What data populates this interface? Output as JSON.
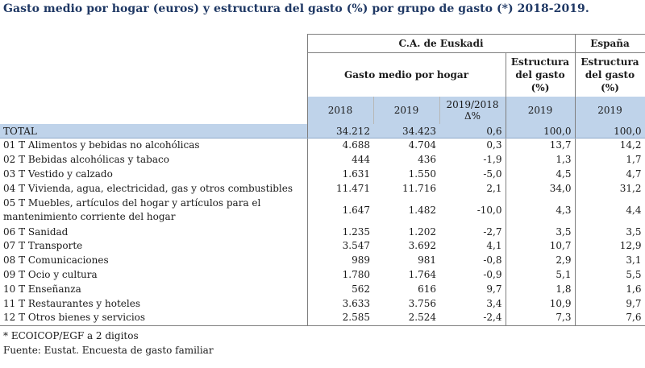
{
  "title": "Gasto medio por hogar (euros) y estructura del gasto (%) por grupo de gasto (*)  2018-2019.",
  "header": {
    "group_euskadi": "C.A. de Euskadi",
    "group_espana": "España",
    "gasto_medio": "Gasto medio por hogar",
    "estructura_euskadi": "Estructura del gasto (%)",
    "estructura_espana": "Estructura del gasto (%)",
    "years": [
      "2018",
      "2019",
      "2019/2018 Δ%",
      "2019",
      "2019"
    ]
  },
  "total": {
    "label": "TOTAL",
    "values": [
      "34.212",
      "34.423",
      "0,6",
      "100,0",
      "100,0"
    ]
  },
  "rows": [
    {
      "label": "01  T Alimentos y bebidas no alcohólicas",
      "values": [
        "4.688",
        "4.704",
        "0,3",
        "13,7",
        "14,2"
      ]
    },
    {
      "label": "02 T Bebidas alcohólicas y tabaco",
      "values": [
        "444",
        "436",
        "-1,9",
        "1,3",
        "1,7"
      ]
    },
    {
      "label": "03 T Vestido y calzado",
      "values": [
        "1.631",
        "1.550",
        "-5,0",
        "4,5",
        "4,7"
      ]
    },
    {
      "label": "04 T Vivienda, agua, electricidad, gas y otros combustibles",
      "values": [
        "11.471",
        "11.716",
        "2,1",
        "34,0",
        "31,2"
      ]
    },
    {
      "label": "05 T Muebles, artículos del hogar y artículos para el",
      "label2": "mantenimiento corriente del hogar",
      "values": [
        "1.647",
        "1.482",
        "-10,0",
        "4,3",
        "4,4"
      ]
    },
    {
      "label": "06 T Sanidad",
      "values": [
        "1.235",
        "1.202",
        "-2,7",
        "3,5",
        "3,5"
      ]
    },
    {
      "label": "07 T Transporte",
      "values": [
        "3.547",
        "3.692",
        "4,1",
        "10,7",
        "12,9"
      ]
    },
    {
      "label": "08 T Comunicaciones",
      "values": [
        "989",
        "981",
        "-0,8",
        "2,9",
        "3,1"
      ]
    },
    {
      "label": "09 T Ocio y cultura",
      "values": [
        "1.780",
        "1.764",
        "-0,9",
        "5,1",
        "5,5"
      ]
    },
    {
      "label": "10 T Enseñanza",
      "values": [
        "562",
        "616",
        "9,7",
        "1,8",
        "1,6"
      ]
    },
    {
      "label": "11 T Restaurantes y hoteles",
      "values": [
        "3.633",
        "3.756",
        "3,4",
        "10,9",
        "9,7"
      ]
    },
    {
      "label": "12 T Otros bienes y servicios",
      "values": [
        "2.585",
        "2.524",
        "-2,4",
        "7,3",
        "7,6"
      ]
    }
  ],
  "notes": {
    "note1": "* ECOICOP/EGF a 2 digitos",
    "note2": "Fuente: Eustat. Encuesta de gasto familiar"
  },
  "colors": {
    "title": "#1f3864",
    "header_fill": "#bfd3ea"
  }
}
